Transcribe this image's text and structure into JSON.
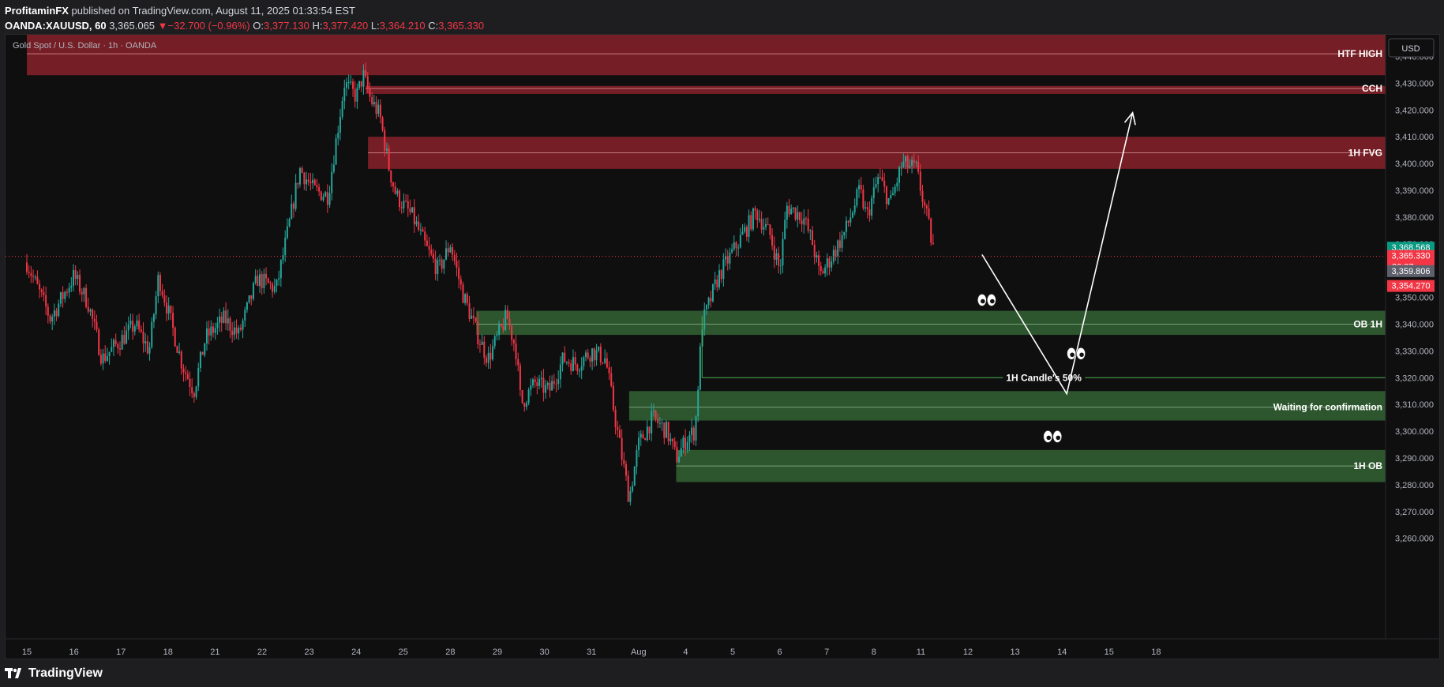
{
  "header": {
    "author": "ProfitaminFX",
    "published": "published on TradingView.com, August 11, 2025 01:33:54 EST",
    "symbol": "OANDA:XAUUSD, 60",
    "price": "3,365.065",
    "change_arrow": "▼",
    "change": "−32.700 (−0.96%)",
    "o_label": "O:",
    "o": "3,377.130",
    "h_label": "H:",
    "h": "3,377.420",
    "l_label": "L:",
    "l": "3,364.210",
    "c_label": "C:",
    "c": "3,365.330"
  },
  "legend": {
    "title": "Gold Spot / U.S. Dollar · 1h · OANDA"
  },
  "currency_button": "USD",
  "footer": {
    "logo_text": "TradingView"
  },
  "colors": {
    "up": "#26a69a",
    "down": "#f23645",
    "supply_zone": "#7b2027",
    "demand_zone": "#2f5a30",
    "text": "#b2b5be"
  },
  "chart_data": {
    "type": "candlestick",
    "title": "Gold Spot / U.S. Dollar · 1h · OANDA",
    "x_ticks": [
      "15",
      "16",
      "17",
      "18",
      "21",
      "22",
      "23",
      "24",
      "25",
      "28",
      "29",
      "30",
      "31",
      "Aug",
      "4",
      "5",
      "6",
      "7",
      "8",
      "11",
      "12",
      "13",
      "14",
      "15",
      "18"
    ],
    "y_ticks": [
      "3,260.000",
      "3,270.000",
      "3,280.000",
      "3,290.000",
      "3,300.000",
      "3,310.000",
      "3,320.000",
      "3,330.000",
      "3,340.000",
      "3,350.000",
      "3,360.000",
      "3,370.000",
      "3,380.000",
      "3,390.000",
      "3,400.000",
      "3,410.000",
      "3,420.000",
      "3,430.000",
      "3,440.000"
    ],
    "y_tick_values": [
      3260,
      3270,
      3280,
      3290,
      3300,
      3310,
      3320,
      3330,
      3340,
      3350,
      3360,
      3370,
      3380,
      3390,
      3400,
      3410,
      3420,
      3430,
      3440
    ],
    "ylim": [
      3255,
      3450
    ],
    "close_path": [
      {
        "x": 0.0,
        "y": 3363
      },
      {
        "x": 0.5,
        "y": 3342
      },
      {
        "x": 1.0,
        "y": 3358
      },
      {
        "x": 1.3,
        "y": 3348
      },
      {
        "x": 1.6,
        "y": 3327
      },
      {
        "x": 2.0,
        "y": 3334
      },
      {
        "x": 2.3,
        "y": 3340
      },
      {
        "x": 2.6,
        "y": 3330
      },
      {
        "x": 2.8,
        "y": 3358
      },
      {
        "x": 3.0,
        "y": 3345
      },
      {
        "x": 3.3,
        "y": 3325
      },
      {
        "x": 3.55,
        "y": 3315
      },
      {
        "x": 3.8,
        "y": 3335
      },
      {
        "x": 4.2,
        "y": 3342
      },
      {
        "x": 4.5,
        "y": 3336
      },
      {
        "x": 4.9,
        "y": 3357
      },
      {
        "x": 5.3,
        "y": 3353
      },
      {
        "x": 5.55,
        "y": 3375
      },
      {
        "x": 5.8,
        "y": 3398
      },
      {
        "x": 6.1,
        "y": 3390
      },
      {
        "x": 6.4,
        "y": 3388
      },
      {
        "x": 6.75,
        "y": 3430
      },
      {
        "x": 7.0,
        "y": 3425
      },
      {
        "x": 7.15,
        "y": 3433
      },
      {
        "x": 7.3,
        "y": 3424
      },
      {
        "x": 7.5,
        "y": 3418
      },
      {
        "x": 7.7,
        "y": 3398
      },
      {
        "x": 7.85,
        "y": 3388
      },
      {
        "x": 8.2,
        "y": 3380
      },
      {
        "x": 8.5,
        "y": 3368
      },
      {
        "x": 8.75,
        "y": 3360
      },
      {
        "x": 9.0,
        "y": 3370
      },
      {
        "x": 9.25,
        "y": 3352
      },
      {
        "x": 9.6,
        "y": 3335
      },
      {
        "x": 9.8,
        "y": 3327
      },
      {
        "x": 10.0,
        "y": 3335
      },
      {
        "x": 10.2,
        "y": 3343
      },
      {
        "x": 10.4,
        "y": 3330
      },
      {
        "x": 10.5,
        "y": 3310
      },
      {
        "x": 10.8,
        "y": 3318
      },
      {
        "x": 11.1,
        "y": 3315
      },
      {
        "x": 11.4,
        "y": 3327
      },
      {
        "x": 11.7,
        "y": 3325
      },
      {
        "x": 12.0,
        "y": 3330
      },
      {
        "x": 12.3,
        "y": 3327
      },
      {
        "x": 12.5,
        "y": 3305
      },
      {
        "x": 12.8,
        "y": 3275
      },
      {
        "x": 13.0,
        "y": 3295
      },
      {
        "x": 13.3,
        "y": 3305
      },
      {
        "x": 13.6,
        "y": 3300
      },
      {
        "x": 13.8,
        "y": 3290
      },
      {
        "x": 14.05,
        "y": 3298
      },
      {
        "x": 14.2,
        "y": 3300
      },
      {
        "x": 14.35,
        "y": 3340
      },
      {
        "x": 14.7,
        "y": 3358
      },
      {
        "x": 15.1,
        "y": 3370
      },
      {
        "x": 15.5,
        "y": 3382
      },
      {
        "x": 15.8,
        "y": 3373
      },
      {
        "x": 16.0,
        "y": 3360
      },
      {
        "x": 16.15,
        "y": 3384
      },
      {
        "x": 16.5,
        "y": 3380
      },
      {
        "x": 16.7,
        "y": 3370
      },
      {
        "x": 16.85,
        "y": 3358
      },
      {
        "x": 17.1,
        "y": 3365
      },
      {
        "x": 17.4,
        "y": 3375
      },
      {
        "x": 17.7,
        "y": 3390
      },
      {
        "x": 17.85,
        "y": 3380
      },
      {
        "x": 18.1,
        "y": 3395
      },
      {
        "x": 18.35,
        "y": 3385
      },
      {
        "x": 18.6,
        "y": 3400
      },
      {
        "x": 18.9,
        "y": 3398
      },
      {
        "x": 19.0,
        "y": 3390
      },
      {
        "x": 19.15,
        "y": 3378
      },
      {
        "x": 19.3,
        "y": 3365
      }
    ],
    "zones": [
      {
        "label": "HTF HIGH",
        "from": 3433,
        "to": 3450,
        "mid": 3441,
        "color": "red"
      },
      {
        "label": "CCH",
        "from": 3426,
        "to": 3429,
        "mid": 3428,
        "color": "red"
      },
      {
        "label": "1H FVG",
        "from": 3398,
        "to": 3410,
        "mid": 3404,
        "color": "red"
      },
      {
        "label": "OB 1H",
        "from": 3336,
        "to": 3345,
        "mid": 3340,
        "color": "green"
      },
      {
        "label": "Waiting for confirmation",
        "from": 3304,
        "to": 3315,
        "mid": 3309,
        "color": "green"
      },
      {
        "label": "1H OB",
        "from": 3281,
        "to": 3293,
        "mid": 3287,
        "color": "green"
      }
    ],
    "candle_50_label": "1H Candle's 50%",
    "candle_50_value": 3320,
    "projection": [
      {
        "x": 20.3,
        "y": 3366
      },
      {
        "x": 22.1,
        "y": 3314
      },
      {
        "x": 23.5,
        "y": 3419
      }
    ],
    "eyes_markers": [
      {
        "x": 20.4,
        "y": 3349
      },
      {
        "x": 22.3,
        "y": 3329
      },
      {
        "x": 21.8,
        "y": 3298
      }
    ],
    "current_price_line": 3365.33,
    "price_labels": [
      {
        "text": "3,368.568",
        "value": 3368.568,
        "color": "#089981"
      },
      {
        "text": "3,365.330",
        "value": 3365.33,
        "color": "#f23645",
        "subtext": "26:07"
      },
      {
        "text": "3,359.806",
        "value": 3359.806,
        "color": "#5d606b"
      },
      {
        "text": "3,354.270",
        "value": 3354.27,
        "color": "#f23645"
      }
    ]
  }
}
